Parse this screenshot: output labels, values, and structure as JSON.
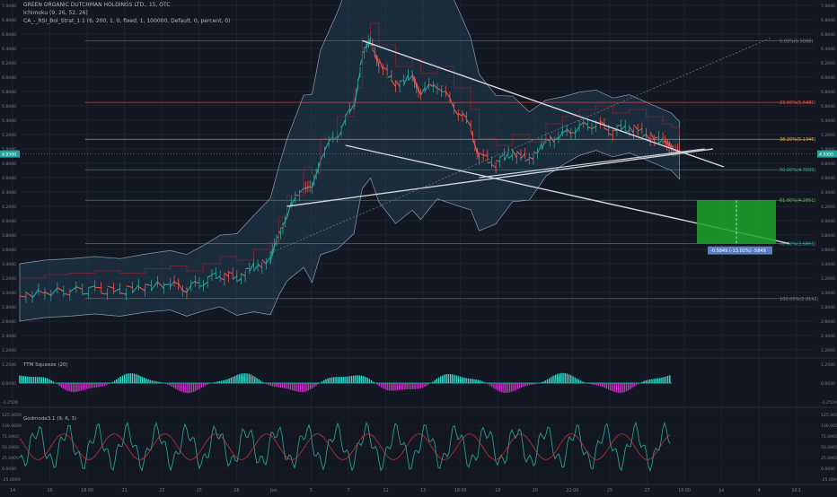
{
  "chart_data": {
    "type": "line",
    "title": "GREEN ORGANIC DUTCHMAN HOLDINGS LTD., 15, OTC",
    "indicator_legend": [
      "Ichimoku (9, 26, 52, 26)",
      "CA_-_RSI_Bol_Strat_1.1 (6, 200, 1, 0, fixed, 1, 100000, Default, 0, percent, 0)"
    ],
    "price_axis": {
      "ylim": [
        2.2,
        7.0
      ],
      "ticks": [
        "7.0000",
        "6.8000",
        "6.6000",
        "6.4000",
        "6.2000",
        "6.0000",
        "5.8000",
        "5.6000",
        "5.4000",
        "5.2000",
        "5.0000",
        "4.8000",
        "4.6000",
        "4.4000",
        "4.2000",
        "4.0000",
        "3.8000",
        "3.6000",
        "3.4000",
        "3.2000",
        "3.0000",
        "2.8000",
        "2.6000",
        "2.4000",
        "2.2000"
      ],
      "ticks_right_only": [
        "7.0000",
        "6.8000",
        "6.6000",
        "6.4000",
        "6.2000",
        "6.0000",
        "5.8000",
        "5.6000",
        "5.4000",
        "5.2000",
        "5.0000",
        "4.8000",
        "4.6000",
        "4.4000",
        "4.2000",
        "4.0000",
        "3.8000",
        "3.6000",
        "3.4000",
        "3.2000",
        "3.0000",
        "2.8000",
        "2.6000",
        "2.4000",
        "2.2000"
      ],
      "last_price": "4.9300",
      "last_price_value": 4.93
    },
    "time_axis": {
      "labels": [
        "14",
        "16",
        "18:00",
        "21",
        "23",
        "25",
        "28",
        "Jun",
        "5",
        "7",
        "11",
        "13",
        "18:00",
        "18",
        "20",
        "22:00",
        "25",
        "27",
        "18:00",
        "Jul",
        "4",
        "10:1"
      ]
    },
    "fibonacci": [
      {
        "label": "0.00%(6.5088)",
        "price": 6.5088
      },
      {
        "label": "23.60%(5.6480)",
        "price": 5.648
      },
      {
        "label": "38.20%(5.1346)",
        "price": 5.1346
      },
      {
        "label": "50.00%(4.7099)",
        "price": 4.7099
      },
      {
        "label": "61.80%(4.2851)",
        "price": 4.2851
      },
      {
        "label": "78.60%(3.6803)",
        "price": 3.6803
      },
      {
        "label": "100.00%(2.9148)",
        "price": 2.9148
      }
    ],
    "measure_label": "-0.5849 (-13.01%) -5849",
    "price_series": [
      [
        0,
        2.95
      ],
      [
        3,
        3.0
      ],
      [
        6,
        3.02
      ],
      [
        9,
        3.05
      ],
      [
        12,
        3.02
      ],
      [
        15,
        3.08
      ],
      [
        18,
        3.12
      ],
      [
        20,
        3.05
      ],
      [
        22,
        3.15
      ],
      [
        24,
        3.25
      ],
      [
        26,
        3.2
      ],
      [
        28,
        3.35
      ],
      [
        30,
        3.45
      ],
      [
        31,
        3.8
      ],
      [
        32,
        4.1
      ],
      [
        34,
        4.5
      ],
      [
        35,
        4.4
      ],
      [
        36,
        4.9
      ],
      [
        38,
        5.2
      ],
      [
        40,
        5.6
      ],
      [
        41,
        6.3
      ],
      [
        42,
        6.5
      ],
      [
        43,
        6.2
      ],
      [
        45,
        5.9
      ],
      [
        47,
        6.0
      ],
      [
        48,
        5.8
      ],
      [
        50,
        5.9
      ],
      [
        52,
        5.6
      ],
      [
        54,
        5.3
      ],
      [
        55,
        4.9
      ],
      [
        57,
        4.8
      ],
      [
        59,
        4.95
      ],
      [
        61,
        4.85
      ],
      [
        63,
        5.1
      ],
      [
        65,
        5.2
      ],
      [
        67,
        5.3
      ],
      [
        69,
        5.35
      ],
      [
        71,
        5.25
      ],
      [
        73,
        5.3
      ],
      [
        75,
        5.2
      ],
      [
        77,
        5.1
      ],
      [
        78,
        5.05
      ],
      [
        79,
        4.93
      ]
    ],
    "indicators": [
      {
        "name": "TTM Squeeze (20)",
        "ticks": [
          "1.2500",
          "0.0000",
          "-1.2500"
        ],
        "ylim": [
          -1.25,
          1.25
        ]
      },
      {
        "name": "Godmode3.1 (9, 6, 3)",
        "ticks": [
          "125.0000",
          "100.0000",
          "75.0000",
          "50.0000",
          "25.0000",
          "0.0000",
          "-25.0000"
        ],
        "ylim": [
          -25,
          125
        ]
      }
    ]
  },
  "colors": {
    "background": "#131722",
    "grid": "#1e222d",
    "up": "#26a69a",
    "down": "#ef5350",
    "trendline": "#d1d4dc",
    "band_fill": "#24475a",
    "band_line": "#8a9bb0",
    "target_box": "#1fa32c",
    "squeeze_pos": "#33e0d0",
    "squeeze_neg": "#cc33cc",
    "last_price_bg": "#26a69a"
  }
}
